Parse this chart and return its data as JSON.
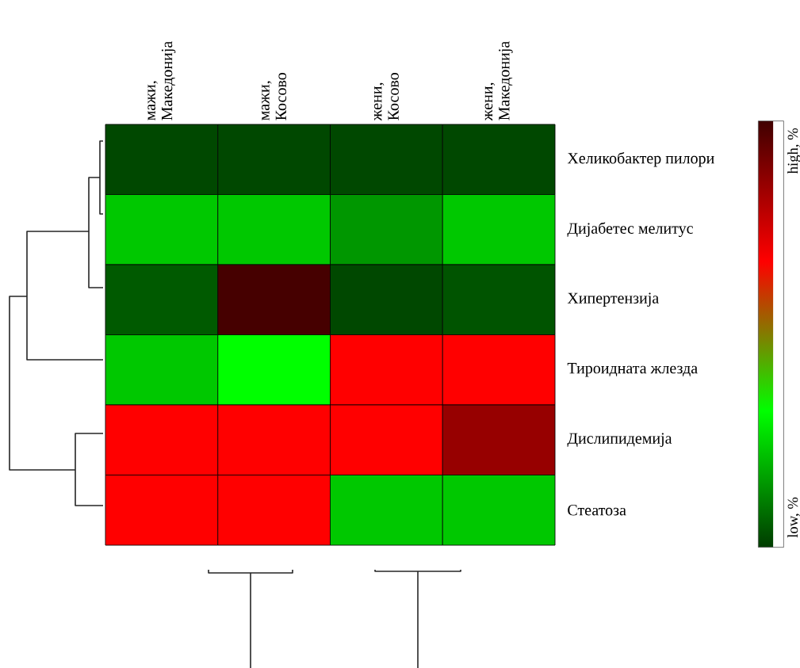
{
  "chart_data": {
    "type": "heatmap",
    "categories": [
      "мажи, Македонија",
      "мажи, Косово",
      "жени, Косово",
      "жени, Македонија"
    ],
    "y_categories": [
      "Хеликобактер пилори",
      "Дијабетес мелитус",
      "Хипертензија",
      "Тироидната жлезда",
      "Дислипидемија",
      "Стеатоза"
    ],
    "cells": [
      [
        0.02,
        0.02,
        0.02,
        0.02
      ],
      [
        0.23,
        0.23,
        0.15,
        0.23
      ],
      [
        0.05,
        0.99,
        0.02,
        0.04
      ],
      [
        0.23,
        0.32,
        0.67,
        0.67
      ],
      [
        0.67,
        0.67,
        0.67,
        0.85
      ],
      [
        0.67,
        0.67,
        0.23,
        0.23
      ]
    ],
    "clim": [
      0,
      1
    ],
    "cticks": [
      {
        "value": 0.07,
        "label": "low, %"
      },
      {
        "value": 0.93,
        "label": "high, %"
      }
    ]
  }
}
